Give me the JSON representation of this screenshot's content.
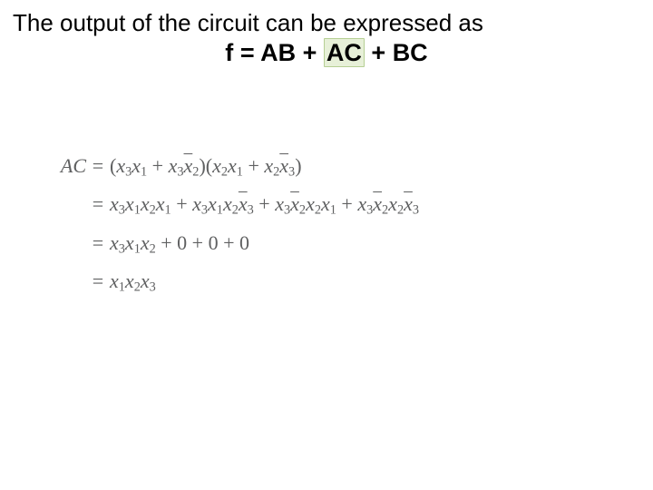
{
  "title": "The output of the circuit can be expressed as",
  "equation": {
    "lhs": "f",
    "t1": "AB",
    "t2": "AC",
    "t3": "BC"
  },
  "colors": {
    "text": "#000000",
    "derivation_text": "#5f6061",
    "highlight_bg": "#e7f0d8",
    "highlight_border": "#b6cf94",
    "background": "#ffffff"
  },
  "fonts": {
    "title_family": "Arial",
    "title_size_pt": 20,
    "equation_size_pt": 20,
    "equation_weight": "bold",
    "derivation_family": "Times New Roman",
    "derivation_size_pt": 16
  },
  "derivation": {
    "variable": "AC",
    "lines": [
      {
        "lhs": "AC",
        "rhs_parts": [
          {
            "t": "("
          },
          {
            "t": "x",
            "sub": "3"
          },
          {
            "t": "x",
            "sub": "1"
          },
          {
            "t": " + "
          },
          {
            "t": "x",
            "sub": "3"
          },
          {
            "t": "x",
            "sub": "2",
            "bar": true
          },
          {
            "t": ")("
          },
          {
            "t": "x",
            "sub": "2"
          },
          {
            "t": "x",
            "sub": "1"
          },
          {
            "t": " + "
          },
          {
            "t": "x",
            "sub": "2"
          },
          {
            "t": "x",
            "sub": "3",
            "bar": true
          },
          {
            "t": ")"
          }
        ]
      },
      {
        "lhs": "",
        "rhs_parts": [
          {
            "t": "x",
            "sub": "3"
          },
          {
            "t": "x",
            "sub": "1"
          },
          {
            "t": "x",
            "sub": "2"
          },
          {
            "t": "x",
            "sub": "1"
          },
          {
            "t": " + "
          },
          {
            "t": "x",
            "sub": "3"
          },
          {
            "t": "x",
            "sub": "1"
          },
          {
            "t": "x",
            "sub": "2"
          },
          {
            "t": "x",
            "sub": "3",
            "bar": true
          },
          {
            "t": " + "
          },
          {
            "t": "x",
            "sub": "3"
          },
          {
            "t": "x",
            "sub": "2",
            "bar": true
          },
          {
            "t": "x",
            "sub": "2"
          },
          {
            "t": "x",
            "sub": "1"
          },
          {
            "t": " + "
          },
          {
            "t": "x",
            "sub": "3"
          },
          {
            "t": "x",
            "sub": "2",
            "bar": true
          },
          {
            "t": "x",
            "sub": "2"
          },
          {
            "t": "x",
            "sub": "3",
            "bar": true
          }
        ]
      },
      {
        "lhs": "",
        "rhs_parts": [
          {
            "t": "x",
            "sub": "3"
          },
          {
            "t": "x",
            "sub": "1"
          },
          {
            "t": "x",
            "sub": "2"
          },
          {
            "t": " + 0 + 0 + 0"
          }
        ]
      },
      {
        "lhs": "",
        "rhs_parts": [
          {
            "t": "x",
            "sub": "1"
          },
          {
            "t": "x",
            "sub": "2"
          },
          {
            "t": "x",
            "sub": "3"
          }
        ]
      }
    ]
  }
}
